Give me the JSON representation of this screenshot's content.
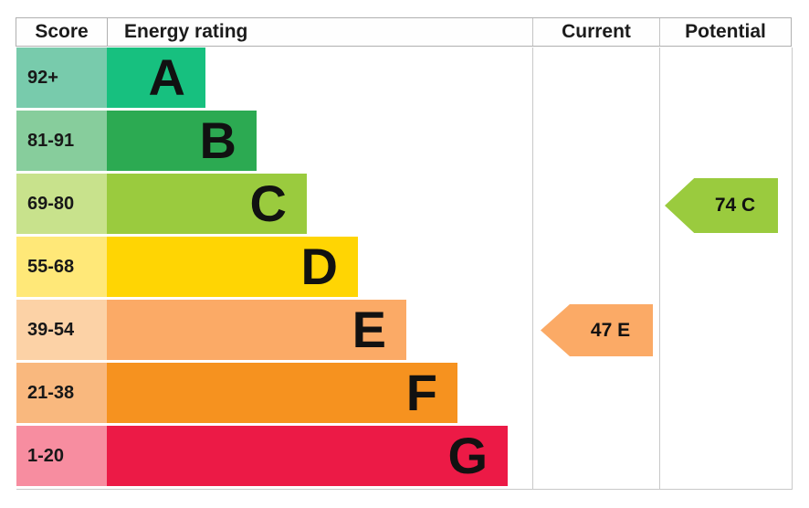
{
  "chart_data": {
    "type": "bar",
    "columns": [
      "Score",
      "Energy rating",
      "Current",
      "Potential"
    ],
    "bands": [
      {
        "letter": "A",
        "score_range": "92+",
        "bar_color": "#17c07f",
        "score_bg": "#78cbac"
      },
      {
        "letter": "B",
        "score_range": "81-91",
        "bar_color": "#2caa52",
        "score_bg": "#87cd9c"
      },
      {
        "letter": "C",
        "score_range": "69-80",
        "bar_color": "#9acb3e",
        "score_bg": "#c8e28c"
      },
      {
        "letter": "D",
        "score_range": "55-68",
        "bar_color": "#ffd503",
        "score_bg": "#ffe878"
      },
      {
        "letter": "E",
        "score_range": "39-54",
        "bar_color": "#fbaa66",
        "score_bg": "#fcd2a6"
      },
      {
        "letter": "F",
        "score_range": "21-38",
        "bar_color": "#f6921f",
        "score_bg": "#f9b87e"
      },
      {
        "letter": "G",
        "score_range": "1-20",
        "bar_color": "#ec1a46",
        "score_bg": "#f78da0"
      }
    ],
    "current": {
      "value": 47,
      "band": "E",
      "label": "47 E",
      "color": "#fbaa66"
    },
    "potential": {
      "value": 74,
      "band": "C",
      "label": "74 C",
      "color": "#9acb3e"
    }
  }
}
